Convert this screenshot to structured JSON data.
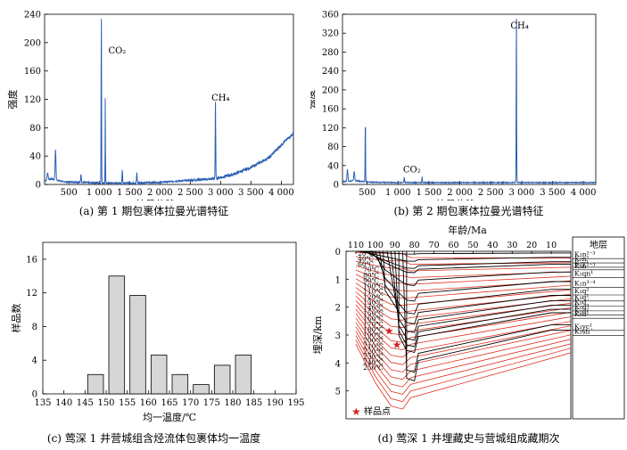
{
  "colors": {
    "spectrum": "#2b5fb4",
    "burial": "#000000",
    "isotherm": "#e03020",
    "bar_fill": "#d6d6d6",
    "star": "#d42020"
  },
  "chart_data": [
    {
      "type": "line",
      "id": "a",
      "caption": "(a) 第 1 期包裹体拉曼光谱特征",
      "xlabel": "拉曼位移/cm⁻¹",
      "ylabel": "强度",
      "xlim": [
        100,
        4200
      ],
      "ylim": [
        0,
        240
      ],
      "xticks": [
        500,
        1000,
        1500,
        2000,
        2500,
        3000,
        3500,
        4000
      ],
      "xtick_labels": [
        "500",
        "1 000",
        "1 500",
        "2 000",
        "2 500",
        "3 000",
        "3 500",
        "4 000"
      ],
      "yticks": [
        0,
        40,
        80,
        120,
        160,
        200,
        240
      ],
      "baseline": [
        [
          100,
          5
        ],
        [
          200,
          8
        ],
        [
          400,
          4
        ],
        [
          700,
          3
        ],
        [
          1000,
          2
        ],
        [
          1500,
          2
        ],
        [
          2000,
          3
        ],
        [
          2500,
          6
        ],
        [
          2900,
          8
        ],
        [
          3200,
          14
        ],
        [
          3500,
          24
        ],
        [
          3800,
          38
        ],
        [
          4000,
          56
        ],
        [
          4200,
          72
        ]
      ],
      "peaks": [
        [
          150,
          10,
          12
        ],
        [
          280,
          42,
          10
        ],
        [
          700,
          12,
          8
        ],
        [
          1035,
          240,
          5
        ],
        [
          1100,
          120,
          4
        ],
        [
          1380,
          18,
          7
        ],
        [
          1620,
          14,
          7
        ],
        [
          2915,
          110,
          6
        ]
      ],
      "annotations": [
        {
          "text": "CO₂",
          "x": 1150,
          "y": 185
        },
        {
          "text": "CH₄",
          "x": 2850,
          "y": 118
        }
      ]
    },
    {
      "type": "line",
      "id": "b",
      "caption": "(b) 第 2 期包裹体拉曼光谱特征",
      "xlabel": "拉曼位移/cm⁻¹",
      "ylabel": "强度",
      "xlim": [
        100,
        4200
      ],
      "ylim": [
        0,
        360
      ],
      "xticks": [
        500,
        1000,
        1500,
        2000,
        2500,
        3000,
        3500,
        4000
      ],
      "xtick_labels": [
        "500",
        "1 000",
        "1 500",
        "2 000",
        "2 500",
        "3 000",
        "3 500",
        "4 000"
      ],
      "yticks": [
        0,
        40,
        80,
        120,
        160,
        200,
        240,
        280,
        320,
        360
      ],
      "baseline": [
        [
          100,
          6
        ],
        [
          300,
          8
        ],
        [
          500,
          5
        ],
        [
          1000,
          4
        ],
        [
          2000,
          4
        ],
        [
          3000,
          4
        ],
        [
          4200,
          4
        ]
      ],
      "peaks": [
        [
          180,
          25,
          10
        ],
        [
          290,
          20,
          10
        ],
        [
          470,
          135,
          5
        ],
        [
          1100,
          12,
          6
        ],
        [
          1388,
          12,
          5
        ],
        [
          2915,
          360,
          5
        ]
      ],
      "annotations": [
        {
          "text": "CH₄",
          "x": 2820,
          "y": 330
        },
        {
          "text": "CO₂",
          "x": 1080,
          "y": 25
        }
      ]
    },
    {
      "type": "bar",
      "id": "c",
      "caption": "(c) 莺深 1 井营城组含烃流体包裹体均一温度",
      "xlabel": "均一温度/℃",
      "ylabel": "样品数",
      "xlim": [
        135,
        195
      ],
      "ylim": [
        0,
        18
      ],
      "xticks": [
        135,
        140,
        145,
        150,
        155,
        160,
        165,
        170,
        175,
        180,
        185,
        190,
        195
      ],
      "yticks": [
        0,
        4,
        8,
        12,
        16
      ],
      "bins": [
        [
          145,
          150
        ],
        [
          150,
          155
        ],
        [
          155,
          160
        ],
        [
          160,
          165
        ],
        [
          165,
          170
        ],
        [
          170,
          175
        ],
        [
          175,
          180
        ],
        [
          180,
          185
        ]
      ],
      "values": [
        2.3,
        14,
        11.7,
        4.6,
        2.3,
        1.1,
        3.4,
        4.6
      ]
    },
    {
      "type": "line",
      "id": "d",
      "caption": "(d) 莺深 1 井埋藏史与营城组成藏期次",
      "xlabel_top": "年龄/Ma",
      "ylabel": "埋深/km",
      "xlim": [
        115,
        0
      ],
      "ylim": [
        0,
        6
      ],
      "xticks": [
        110,
        100,
        90,
        80,
        70,
        60,
        50,
        40,
        30,
        20,
        10
      ],
      "yticks": [
        0,
        1,
        2,
        3,
        4,
        5
      ],
      "legend_header": "地层",
      "strata": [
        {
          "label": "K₂n²⁻³",
          "d": 0.1
        },
        {
          "label": "K₂n¹",
          "d": 0.35
        },
        {
          "label": "K₂y¹",
          "d": 0.6
        },
        {
          "label": "K₁n²⁻³",
          "d": 0.75
        },
        {
          "label": "K₁qn¹",
          "d": 1.2
        },
        {
          "label": "K₁n³⁻⁴",
          "d": 1.75
        },
        {
          "label": "K₁q²",
          "d": 2.2
        },
        {
          "label": "K₁q¹",
          "d": 2.55
        },
        {
          "label": "K₁d´",
          "d": 2.85
        },
        {
          "label": "K₁d³",
          "d": 3.12
        },
        {
          "label": "K₁d²",
          "d": 3.35
        },
        {
          "label": "K₁d¹",
          "d": 3.55
        },
        {
          "label": "K₁yc¹",
          "d": 4.25
        },
        {
          "label": "K₁sh´",
          "d": 4.55
        }
      ],
      "isotherms": [
        "20℃",
        "40℃",
        "60℃",
        "70℃",
        "80℃",
        "90℃",
        "100℃",
        "110℃",
        "120℃",
        "130℃",
        "140℃",
        "150℃",
        "160℃",
        "170℃",
        "180℃",
        "190℃",
        "200℃",
        "210℃",
        "220℃",
        "230℃",
        "240℃",
        "250℃"
      ],
      "samples": [
        {
          "age": 93,
          "depth": 2.85
        },
        {
          "age": 89,
          "depth": 3.35
        }
      ],
      "legend_sample": "样品点"
    }
  ]
}
